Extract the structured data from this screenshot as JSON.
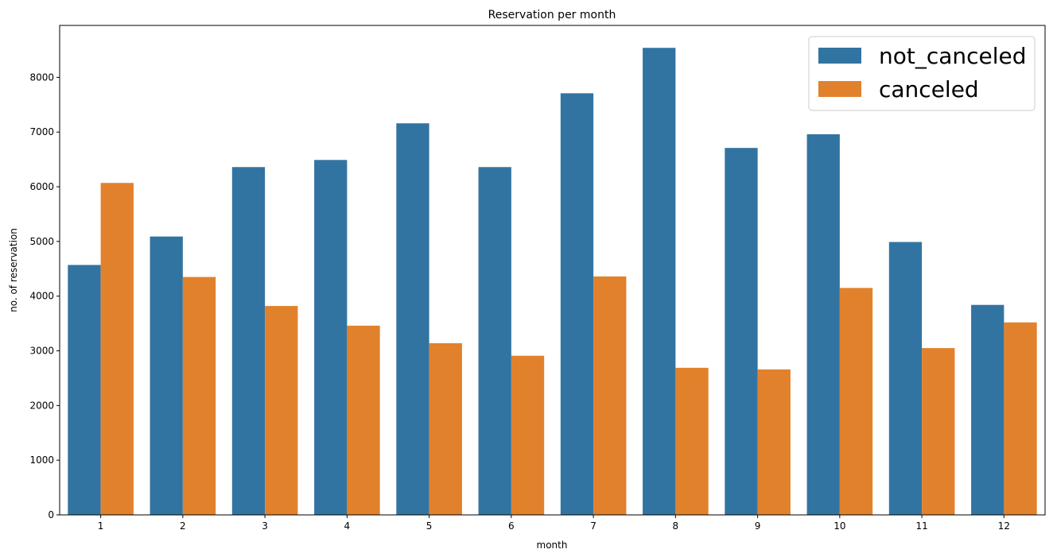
{
  "chart_data": {
    "type": "bar",
    "title": "Reservation per month",
    "xlabel": "month",
    "ylabel": "no. of reservation",
    "categories": [
      "1",
      "2",
      "3",
      "4",
      "5",
      "6",
      "7",
      "8",
      "9",
      "10",
      "11",
      "12"
    ],
    "series": [
      {
        "name": "not_canceled",
        "color": "#3274a1",
        "values": [
          4570,
          5090,
          6360,
          6490,
          7160,
          6360,
          7710,
          8540,
          6710,
          6960,
          4990,
          3840
        ]
      },
      {
        "name": "canceled",
        "color": "#e1812c",
        "values": [
          6070,
          4350,
          3820,
          3460,
          3140,
          2910,
          4360,
          2690,
          2660,
          4150,
          3050,
          3520
        ]
      }
    ],
    "ylim": [
      0,
      8950
    ],
    "yticks": [
      0,
      1000,
      2000,
      3000,
      4000,
      5000,
      6000,
      7000,
      8000
    ],
    "grid": false,
    "legend_position": "top-right"
  }
}
